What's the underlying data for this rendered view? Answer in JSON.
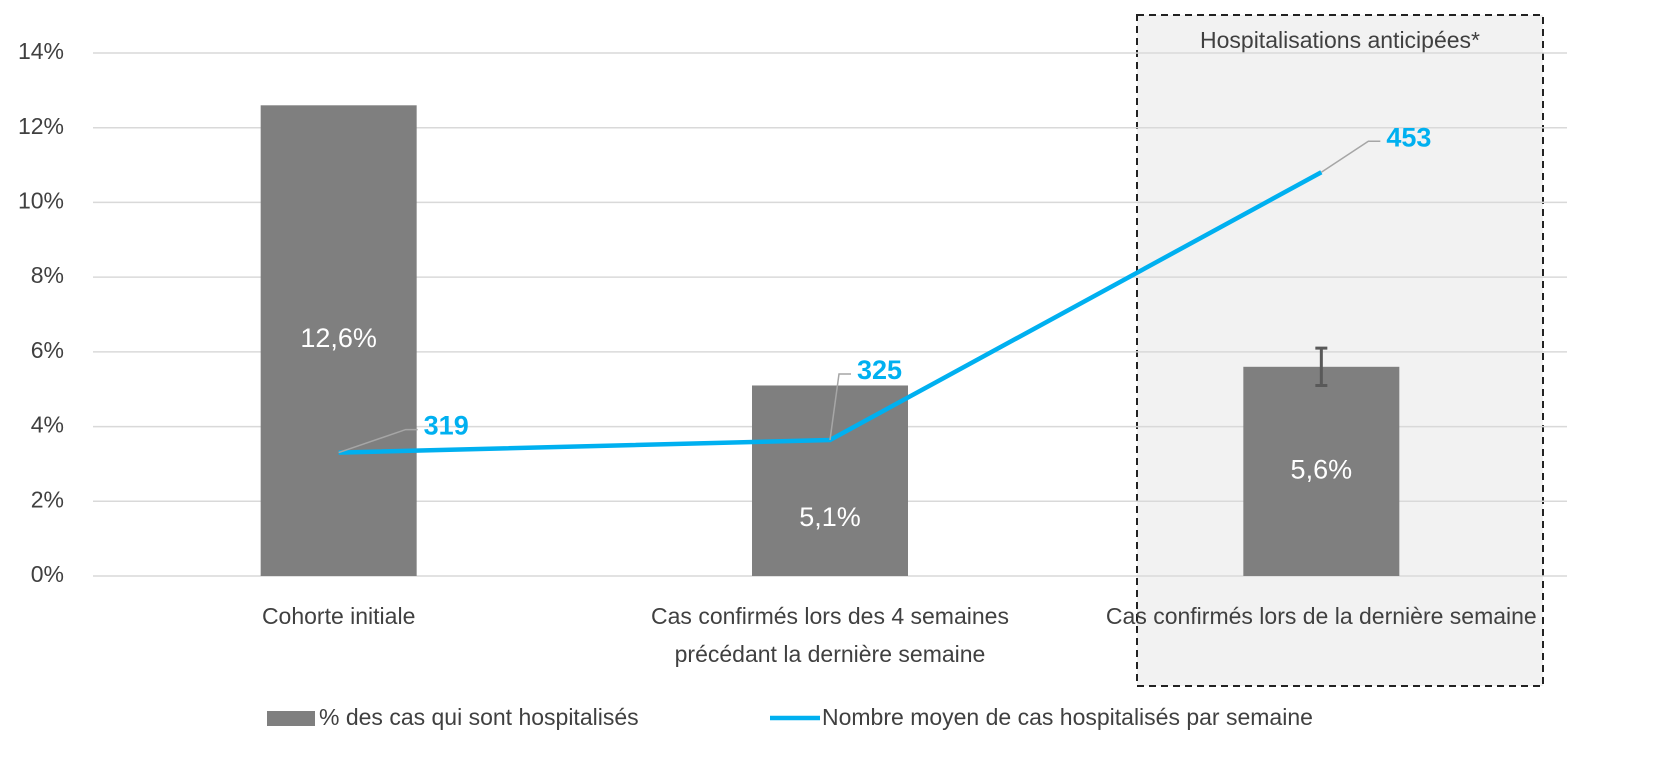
{
  "chart_data": {
    "type": "bar-line",
    "categories": [
      "Cohorte initiale",
      "Cas confirmés lors des 4 semaines précédant la dernière semaine",
      "Cas confirmés lors de la dernière semaine"
    ],
    "series": [
      {
        "name": "% des cas qui sont hospitalisés",
        "type": "bar",
        "color": "#7f7f7f",
        "values": [
          12.6,
          5.1,
          5.6
        ],
        "value_labels": [
          "12,6%",
          "5,1%",
          "5,6%"
        ],
        "errors": [
          null,
          null,
          0.5
        ]
      },
      {
        "name": "Nombre moyen de cas hospitalisés par semaine",
        "type": "line",
        "axis": "y2",
        "color": "#00b0f0",
        "values": [
          319,
          325,
          453
        ]
      }
    ],
    "ylim": [
      0,
      14
    ],
    "yticks": [
      {
        "value": 0,
        "label": "0%"
      },
      {
        "value": 2,
        "label": "2%"
      },
      {
        "value": 4,
        "label": "4%"
      },
      {
        "value": 6,
        "label": "6%"
      },
      {
        "value": 8,
        "label": "8%"
      },
      {
        "value": 10,
        "label": "10%"
      },
      {
        "value": 12,
        "label": "12%"
      },
      {
        "value": 14,
        "label": "14%"
      }
    ],
    "y2lim": [
      260,
      510
    ],
    "grid": true,
    "legend": "bottom",
    "annotation": "Hospitalisations anticipées*"
  }
}
